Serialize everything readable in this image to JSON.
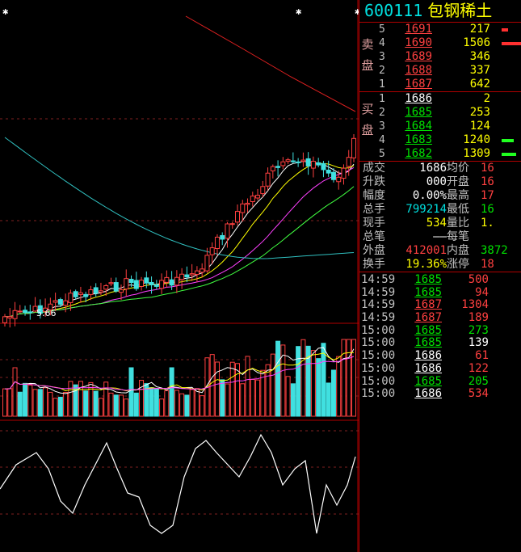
{
  "stock": {
    "code": "600111",
    "name": "包钢稀土"
  },
  "chart": {
    "low_label": "5.66"
  },
  "order_book": {
    "sell_label": "卖盘",
    "buy_label": "买盘",
    "asks": [
      {
        "level": "5",
        "price": "1691",
        "volume": "217",
        "color": "red",
        "bar": 30
      },
      {
        "level": "4",
        "price": "1690",
        "volume": "1506",
        "color": "red",
        "bar": 100
      },
      {
        "level": "3",
        "price": "1689",
        "volume": "346",
        "color": "red",
        "bar": 0
      },
      {
        "level": "2",
        "price": "1688",
        "volume": "337",
        "color": "red",
        "bar": 0
      },
      {
        "level": "1",
        "price": "1687",
        "volume": "642",
        "color": "red",
        "bar": 0
      }
    ],
    "bids": [
      {
        "level": "1",
        "price": "1686",
        "volume": "2",
        "color": "white",
        "bar": 0
      },
      {
        "level": "2",
        "price": "1685",
        "volume": "253",
        "color": "green",
        "bar": 0
      },
      {
        "level": "3",
        "price": "1684",
        "volume": "124",
        "color": "green",
        "bar": 0
      },
      {
        "level": "4",
        "price": "1683",
        "volume": "1240",
        "color": "green",
        "bar": 60
      },
      {
        "level": "5",
        "price": "1682",
        "volume": "1309",
        "color": "green",
        "bar": 70
      }
    ]
  },
  "stats": [
    {
      "label": "成交",
      "value": "1686",
      "value_color": "white",
      "label2": "均价",
      "value2": "16",
      "value2_color": "red"
    },
    {
      "label": "升跌",
      "value": "000",
      "value_color": "white",
      "label2": "开盘",
      "value2": "16",
      "value2_color": "red"
    },
    {
      "label": "幅度",
      "value": "0.00%",
      "value_color": "white",
      "label2": "最高",
      "value2": "17",
      "value2_color": "red"
    },
    {
      "label": "总手",
      "value": "799214",
      "value_color": "cyan",
      "label2": "最低",
      "value2": "16",
      "value2_color": "green"
    },
    {
      "label": "现手",
      "value": "534",
      "value_color": "yellow",
      "label2": "量比",
      "value2": "1.",
      "value2_color": "yellow"
    },
    {
      "label": "总笔",
      "value": "——",
      "value_color": "white",
      "label2": "每笔",
      "value2": "",
      "value2_color": "white"
    },
    {
      "label": "外盘",
      "value": "412001",
      "value_color": "red",
      "label2": "内盘",
      "value2": "3872",
      "value2_color": "green"
    },
    {
      "label": "换手",
      "value": "19.36%",
      "value_color": "yellow",
      "label2": "涨停",
      "value2": "18",
      "value2_color": "red"
    }
  ],
  "ticks": [
    {
      "time": "14:59",
      "price": "1685",
      "price_color": "green",
      "volume": "500",
      "volume_color": "red"
    },
    {
      "time": "14:59",
      "price": "1685",
      "price_color": "green",
      "volume": "94",
      "volume_color": "red"
    },
    {
      "time": "14:59",
      "price": "1687",
      "price_color": "red",
      "volume": "1304",
      "volume_color": "red"
    },
    {
      "time": "14:59",
      "price": "1687",
      "price_color": "red",
      "volume": "189",
      "volume_color": "red"
    },
    {
      "time": "15:00",
      "price": "1685",
      "price_color": "green",
      "volume": "273",
      "volume_color": "green"
    },
    {
      "time": "15:00",
      "price": "1685",
      "price_color": "green",
      "volume": "139",
      "volume_color": "white"
    },
    {
      "time": "15:00",
      "price": "1686",
      "price_color": "white",
      "volume": "61",
      "volume_color": "red"
    },
    {
      "time": "15:00",
      "price": "1686",
      "price_color": "white",
      "volume": "122",
      "volume_color": "red"
    },
    {
      "time": "15:00",
      "price": "1685",
      "price_color": "green",
      "volume": "205",
      "volume_color": "green"
    },
    {
      "time": "15:00",
      "price": "1686",
      "price_color": "white",
      "volume": "534",
      "volume_color": "red"
    }
  ]
}
